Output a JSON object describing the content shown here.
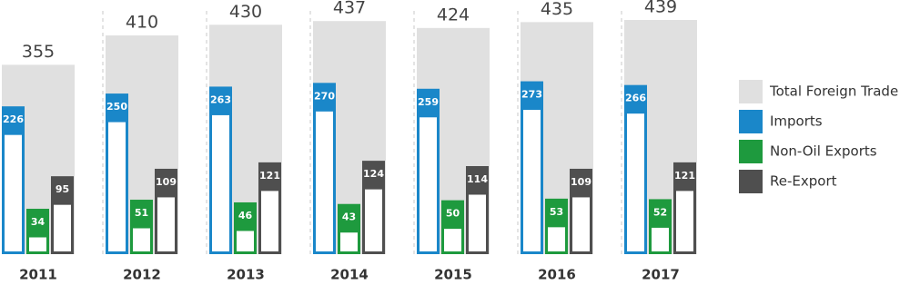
{
  "chart_data": {
    "type": "grouped_bar",
    "categories": [
      "2011",
      "2012",
      "2013",
      "2014",
      "2015",
      "2016",
      "2017"
    ],
    "series": [
      {
        "name": "Total Foreign Trade",
        "color": "#e0e0e0",
        "values": [
          355,
          410,
          430,
          437,
          424,
          435,
          439
        ]
      },
      {
        "name": "Imports",
        "color": "#1a87c9",
        "values": [
          226,
          250,
          263,
          270,
          259,
          273,
          266
        ]
      },
      {
        "name": "Non-Oil Exports",
        "color": "#1e9a3e",
        "values": [
          34,
          51,
          46,
          43,
          50,
          53,
          52
        ]
      },
      {
        "name": "Re-Export",
        "color": "#4f4f4f",
        "values": [
          95,
          109,
          121,
          124,
          114,
          109,
          121
        ]
      }
    ]
  }
}
